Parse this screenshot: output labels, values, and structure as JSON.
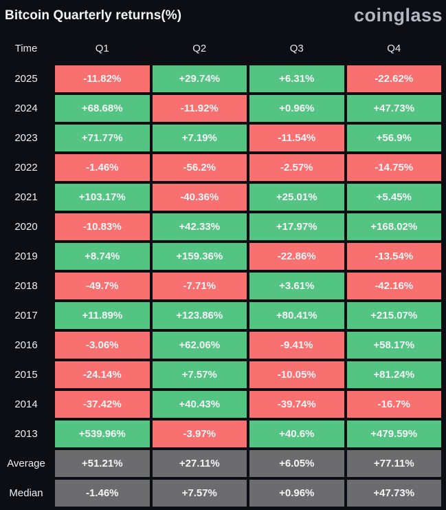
{
  "header": {
    "title": "Bitcoin Quarterly returns(%)",
    "logo": "coinglass"
  },
  "theme": {
    "background": "#0c0e14",
    "positive": "#54c483",
    "negative": "#f97070",
    "neutral": "#6c6c6e",
    "cell_text": "#f4f6f8"
  },
  "table": {
    "columns": [
      "Time",
      "Q1",
      "Q2",
      "Q3",
      "Q4"
    ],
    "rows": [
      {
        "label": "2025",
        "values": [
          "-11.82%",
          "+29.74%",
          "+6.31%",
          "-22.62%"
        ],
        "colors": [
          "red",
          "green",
          "green",
          "red"
        ]
      },
      {
        "label": "2024",
        "values": [
          "+68.68%",
          "-11.92%",
          "+0.96%",
          "+47.73%"
        ],
        "colors": [
          "green",
          "red",
          "green",
          "green"
        ]
      },
      {
        "label": "2023",
        "values": [
          "+71.77%",
          "+7.19%",
          "-11.54%",
          "+56.9%"
        ],
        "colors": [
          "green",
          "green",
          "red",
          "green"
        ]
      },
      {
        "label": "2022",
        "values": [
          "-1.46%",
          "-56.2%",
          "-2.57%",
          "-14.75%"
        ],
        "colors": [
          "red",
          "red",
          "red",
          "red"
        ]
      },
      {
        "label": "2021",
        "values": [
          "+103.17%",
          "-40.36%",
          "+25.01%",
          "+5.45%"
        ],
        "colors": [
          "green",
          "red",
          "green",
          "green"
        ]
      },
      {
        "label": "2020",
        "values": [
          "-10.83%",
          "+42.33%",
          "+17.97%",
          "+168.02%"
        ],
        "colors": [
          "red",
          "green",
          "green",
          "green"
        ]
      },
      {
        "label": "2019",
        "values": [
          "+8.74%",
          "+159.36%",
          "-22.86%",
          "-13.54%"
        ],
        "colors": [
          "green",
          "green",
          "red",
          "red"
        ]
      },
      {
        "label": "2018",
        "values": [
          "-49.7%",
          "-7.71%",
          "+3.61%",
          "-42.16%"
        ],
        "colors": [
          "red",
          "red",
          "green",
          "red"
        ]
      },
      {
        "label": "2017",
        "values": [
          "+11.89%",
          "+123.86%",
          "+80.41%",
          "+215.07%"
        ],
        "colors": [
          "green",
          "green",
          "green",
          "green"
        ]
      },
      {
        "label": "2016",
        "values": [
          "-3.06%",
          "+62.06%",
          "-9.41%",
          "+58.17%"
        ],
        "colors": [
          "red",
          "green",
          "red",
          "green"
        ]
      },
      {
        "label": "2015",
        "values": [
          "-24.14%",
          "+7.57%",
          "-10.05%",
          "+81.24%"
        ],
        "colors": [
          "red",
          "green",
          "red",
          "green"
        ]
      },
      {
        "label": "2014",
        "values": [
          "-37.42%",
          "+40.43%",
          "-39.74%",
          "-16.7%"
        ],
        "colors": [
          "red",
          "green",
          "red",
          "red"
        ]
      },
      {
        "label": "2013",
        "values": [
          "+539.96%",
          "-3.97%",
          "+40.6%",
          "+479.59%"
        ],
        "colors": [
          "green",
          "red",
          "green",
          "green"
        ]
      },
      {
        "label": "Average",
        "values": [
          "+51.21%",
          "+27.11%",
          "+6.05%",
          "+77.11%"
        ],
        "colors": [
          "gray",
          "gray",
          "gray",
          "gray"
        ]
      },
      {
        "label": "Median",
        "values": [
          "-1.46%",
          "+7.57%",
          "+0.96%",
          "+47.73%"
        ],
        "colors": [
          "gray",
          "gray",
          "gray",
          "gray"
        ]
      }
    ]
  },
  "chart_data": {
    "type": "heatmap",
    "title": "Bitcoin Quarterly returns(%)",
    "columns": [
      "Q1",
      "Q2",
      "Q3",
      "Q4"
    ],
    "row_labels": [
      "2025",
      "2024",
      "2023",
      "2022",
      "2021",
      "2020",
      "2019",
      "2018",
      "2017",
      "2016",
      "2015",
      "2014",
      "2013",
      "Average",
      "Median"
    ],
    "values_percent": [
      [
        -11.82,
        29.74,
        6.31,
        -22.62
      ],
      [
        68.68,
        -11.92,
        0.96,
        47.73
      ],
      [
        71.77,
        7.19,
        -11.54,
        56.9
      ],
      [
        -1.46,
        -56.2,
        -2.57,
        -14.75
      ],
      [
        103.17,
        -40.36,
        25.01,
        5.45
      ],
      [
        -10.83,
        42.33,
        17.97,
        168.02
      ],
      [
        8.74,
        159.36,
        -22.86,
        -13.54
      ],
      [
        -49.7,
        -7.71,
        3.61,
        -42.16
      ],
      [
        11.89,
        123.86,
        80.41,
        215.07
      ],
      [
        -3.06,
        62.06,
        -9.41,
        58.17
      ],
      [
        -24.14,
        7.57,
        -10.05,
        81.24
      ],
      [
        -37.42,
        40.43,
        -39.74,
        -16.7
      ],
      [
        539.96,
        -3.97,
        40.6,
        479.59
      ],
      [
        51.21,
        27.11,
        6.05,
        77.11
      ],
      [
        -1.46,
        7.57,
        0.96,
        47.73
      ]
    ],
    "color_rule": "positive cells green (#54c483), negative cells red (#f97070), Average and Median summary rows gray (#6c6c6e)",
    "legend_position": "none",
    "grid": "dark background gaps between cells"
  }
}
